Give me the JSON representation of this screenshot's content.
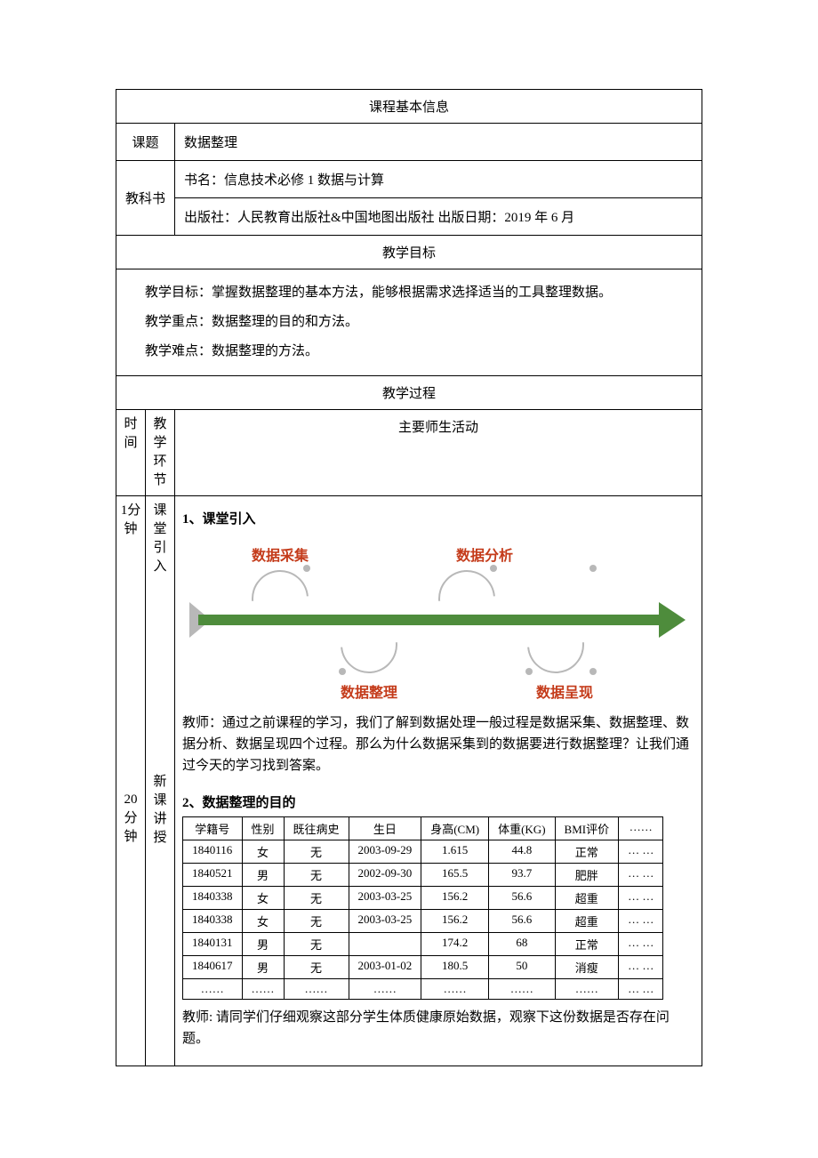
{
  "headers": {
    "basic_info": "课程基本信息",
    "goals": "教学目标",
    "process": "教学过程"
  },
  "info": {
    "topic_label": "课题",
    "topic_value": "数据整理",
    "textbook_label": "教科书",
    "book_line": "书名：信息技术必修 1 数据与计算",
    "publisher_line": "出版社：人民教育出版社&中国地图出版社    出版日期：2019 年 6 月"
  },
  "goals": {
    "line1": "教学目标：掌握数据整理的基本方法，能够根据需求选择适当的工具整理数据。",
    "line2": "教学重点：数据整理的目的和方法。",
    "line3": "教学难点：数据整理的方法。"
  },
  "process_header": {
    "time_col": "时间",
    "stage_col": "教学环节",
    "activity_col": "主要师生活动"
  },
  "row1": {
    "time": "1分钟",
    "stage": "课堂引入",
    "title": "1、课堂引入"
  },
  "fishbone": {
    "labels": [
      "数据采集",
      "数据分析",
      "数据整理",
      "数据呈现"
    ],
    "label_color": "#c43b1a",
    "arrow_color": "#4e8c3c"
  },
  "teacher_intro": "教师：通过之前课程的学习，我们了解到数据处理一般过程是数据采集、数据整理、数据分析、数据呈现四个过程。那么为什么数据采集到的数据要进行数据整理？让我们通过今天的学习找到答案。",
  "row2": {
    "time": "20分钟",
    "stage": "新课讲授",
    "title": "2、数据整理的目的"
  },
  "data_table": {
    "columns": [
      "学籍号",
      "性别",
      "既往病史",
      "生日",
      "身高(CM)",
      "体重(KG)",
      "BMI评价",
      "……"
    ],
    "rows": [
      [
        "1840116",
        "女",
        "无",
        "2003-09-29",
        "1.615",
        "44.8",
        "正常",
        "… …"
      ],
      [
        "1840521",
        "男",
        "无",
        "2002-09-30",
        "165.5",
        "93.7",
        "肥胖",
        "… …"
      ],
      [
        "1840338",
        "女",
        "无",
        "2003-03-25",
        "156.2",
        "56.6",
        "超重",
        "… …"
      ],
      [
        "1840338",
        "女",
        "无",
        "2003-03-25",
        "156.2",
        "56.6",
        "超重",
        "… …"
      ],
      [
        "1840131",
        "男",
        "无",
        "",
        "174.2",
        "68",
        "正常",
        "… …"
      ],
      [
        "1840617",
        "男",
        "无",
        "2003-01-02",
        "180.5",
        "50",
        "消瘦",
        "… …"
      ],
      [
        "……",
        "……",
        "……",
        "……",
        "……",
        "……",
        "……",
        "… …"
      ]
    ]
  },
  "teacher_observe": "教师: 请同学们仔细观察这部分学生体质健康原始数据，观察下这份数据是否存在问题。"
}
